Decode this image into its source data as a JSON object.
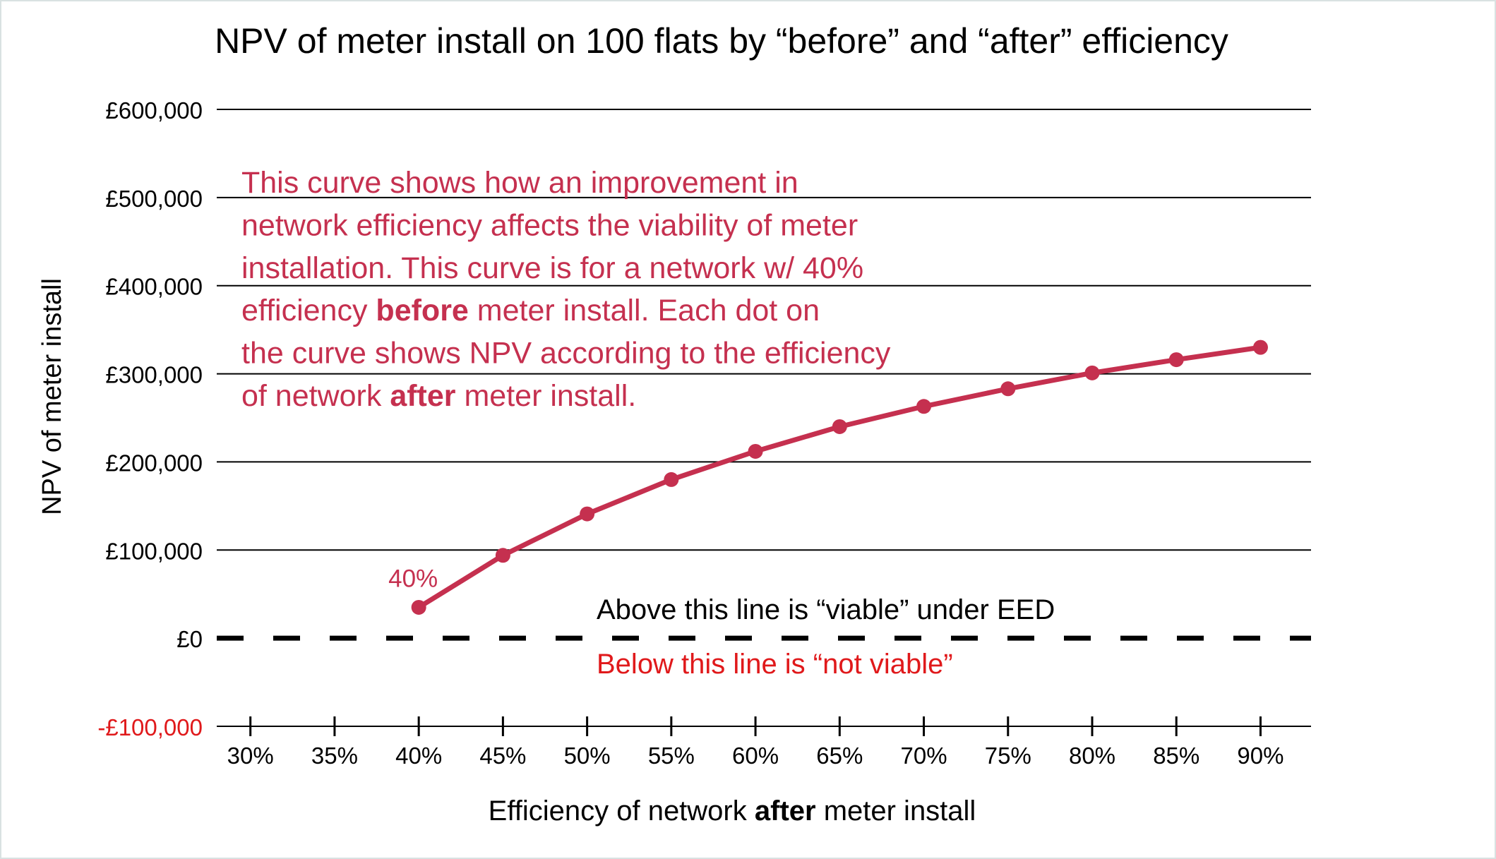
{
  "chart_data": {
    "type": "line",
    "title": "NPV of meter install on 100 flats by “before” and “after” efficiency",
    "xlabel_prefix": "Efficiency of network ",
    "xlabel_bold": "after",
    "xlabel_suffix": " meter install",
    "ylabel": "NPV of meter install",
    "x_ticks": [
      30,
      35,
      40,
      45,
      50,
      55,
      60,
      65,
      70,
      75,
      80,
      85,
      90
    ],
    "x_tick_labels": [
      "30%",
      "35%",
      "40%",
      "45%",
      "50%",
      "55%",
      "60%",
      "65%",
      "70%",
      "75%",
      "80%",
      "85%",
      "90%"
    ],
    "xlim": [
      28,
      93
    ],
    "y_ticks": [
      -100000,
      0,
      100000,
      200000,
      300000,
      400000,
      500000,
      600000
    ],
    "y_tick_labels": [
      "-£100,000",
      "£0",
      "£100,000",
      "£200,000",
      "£300,000",
      "£400,000",
      "£500,000",
      "£600,000"
    ],
    "ylim": [
      -100000,
      600000
    ],
    "grid": true,
    "series": [
      {
        "color": "#c5304f",
        "x": [
          40,
          45,
          50,
          55,
          60,
          65,
          70,
          75,
          80,
          85,
          90
        ],
        "y": [
          35000,
          94000,
          141000,
          180000,
          212000,
          240000,
          263000,
          283000,
          301000,
          316000,
          330000
        ]
      }
    ],
    "point_label": "40%",
    "viability_line_y": 0,
    "annotation_above": "Above this line is “viable” under EED",
    "annotation_below": "Below this line is “not viable”",
    "callout_lines": [
      [
        {
          "t": "This curve shows how an improvement in",
          "b": false
        }
      ],
      [
        {
          "t": "network efficiency affects the viability of meter",
          "b": false
        }
      ],
      [
        {
          "t": "installation. This curve is for a network w/ 40%",
          "b": false
        }
      ],
      [
        {
          "t": "efficiency ",
          "b": false
        },
        {
          "t": "before",
          "b": true
        },
        {
          "t": " meter install. Each dot on",
          "b": false
        }
      ],
      [
        {
          "t": "the curve shows NPV according to the efficiency",
          "b": false
        }
      ],
      [
        {
          "t": "of network ",
          "b": false
        },
        {
          "t": "after",
          "b": true
        },
        {
          "t": " meter install.",
          "b": false
        }
      ]
    ],
    "colors": {
      "series": "#c5304f",
      "negative_label": "#e0191b",
      "below_annotation": "#e0191b",
      "text": "#000000",
      "grid": "#000000"
    }
  }
}
